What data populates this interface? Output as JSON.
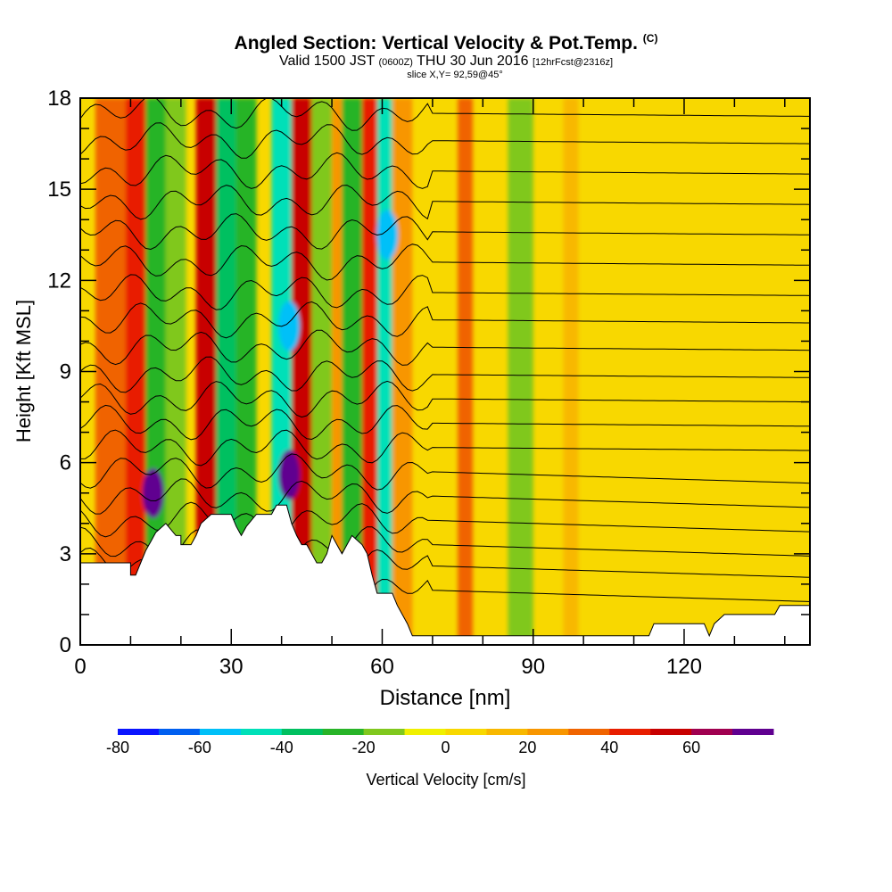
{
  "title": {
    "main": "Angled Section: Vertical Velocity & Pot.Temp.",
    "mark": "(C)",
    "valid_pre": "Valid 1500 JST",
    "valid_z": "(0600Z)",
    "valid_date": "THU 30 Jun 2016",
    "forecast": "[12hrFcst@2316z]",
    "slice": "slice X,Y= 92,59@45°"
  },
  "chart_data": {
    "type": "heatmap",
    "title": "Angled Section: Vertical Velocity & Pot.Temp.",
    "xlabel": "Distance [nm]",
    "ylabel": "Height [Kft MSL]",
    "xlim": [
      0,
      145
    ],
    "ylim": [
      0,
      18
    ],
    "x_ticks": [
      0,
      30,
      60,
      90,
      120
    ],
    "y_ticks": [
      0,
      3,
      6,
      9,
      12,
      15,
      18
    ],
    "colorbar": {
      "label": "Vertical Velocity [cm/s]",
      "ticks": [
        -80,
        -60,
        -40,
        -20,
        0,
        20,
        40,
        60
      ],
      "bins": [
        {
          "lo": -80,
          "hi": -70,
          "color": "#0a14ff"
        },
        {
          "lo": -70,
          "hi": -60,
          "color": "#005ff0"
        },
        {
          "lo": -60,
          "hi": -50,
          "color": "#00c0f8"
        },
        {
          "lo": -50,
          "hi": -40,
          "color": "#00e0b8"
        },
        {
          "lo": -40,
          "hi": -30,
          "color": "#00c060"
        },
        {
          "lo": -30,
          "hi": -20,
          "color": "#28b428"
        },
        {
          "lo": -20,
          "hi": -10,
          "color": "#80c81e"
        },
        {
          "lo": -10,
          "hi": 0,
          "color": "#f0f000"
        },
        {
          "lo": 0,
          "hi": 10,
          "color": "#f8d800"
        },
        {
          "lo": 10,
          "hi": 20,
          "color": "#f8b800"
        },
        {
          "lo": 20,
          "hi": 30,
          "color": "#f89600"
        },
        {
          "lo": 30,
          "hi": 40,
          "color": "#f06400"
        },
        {
          "lo": 40,
          "hi": 50,
          "color": "#e81e00"
        },
        {
          "lo": 50,
          "hi": 60,
          "color": "#c80000"
        },
        {
          "lo": 60,
          "hi": 70,
          "color": "#a00050"
        },
        {
          "lo": 70,
          "hi": 80,
          "color": "#600090"
        }
      ]
    },
    "vertical_velocity_features": [
      {
        "x0": 3,
        "x1": 9,
        "value": 35
      },
      {
        "x0": 9,
        "x1": 13,
        "value": 45
      },
      {
        "x0": 13,
        "x1": 17,
        "value": -30
      },
      {
        "x0": 17,
        "x1": 21,
        "value": -20
      },
      {
        "x0": 23,
        "x1": 27,
        "value": 55
      },
      {
        "x0": 27,
        "x1": 31,
        "value": -40
      },
      {
        "x0": 31,
        "x1": 35,
        "value": -25
      },
      {
        "x0": 38,
        "x1": 42,
        "value": -45
      },
      {
        "x0": 42,
        "x1": 46,
        "value": 50
      },
      {
        "x0": 46,
        "x1": 50,
        "value": -15
      },
      {
        "x0": 50,
        "x1": 52,
        "value": 25
      },
      {
        "x0": 52,
        "x1": 56,
        "value": -30
      },
      {
        "x0": 56,
        "x1": 59,
        "value": 45
      },
      {
        "x0": 59,
        "x1": 62,
        "value": -45
      },
      {
        "x0": 62,
        "x1": 66,
        "value": 20
      },
      {
        "x0": 75,
        "x1": 78,
        "value": 35
      },
      {
        "x0": 85,
        "x1": 90,
        "value": -15
      },
      {
        "x0": 96,
        "x1": 99,
        "value": 15
      }
    ],
    "strong_cores": [
      {
        "x": 14.5,
        "y": 5.0,
        "value": 75
      },
      {
        "x": 41.5,
        "y": 5.6,
        "value": 75
      },
      {
        "x": 61,
        "y": 13.5,
        "value": -55
      },
      {
        "x": 41.5,
        "y": 10.5,
        "value": -55
      }
    ],
    "pot_temp_contour_heights": [
      1.8,
      2.6,
      3.3,
      4.1,
      4.9,
      5.7,
      6.5,
      7.3,
      8.1,
      8.9,
      9.8,
      10.7,
      11.6,
      12.6,
      13.6,
      14.6,
      15.6,
      16.6,
      17.5
    ],
    "terrain": [
      [
        0,
        2.7
      ],
      [
        10,
        2.7
      ],
      [
        10,
        2.3
      ],
      [
        11,
        2.3
      ],
      [
        12,
        2.7
      ],
      [
        13,
        3.1
      ],
      [
        14,
        3.4
      ],
      [
        15,
        3.7
      ],
      [
        17,
        4.0
      ],
      [
        19,
        3.6
      ],
      [
        20,
        3.6
      ],
      [
        20,
        3.3
      ],
      [
        22,
        3.3
      ],
      [
        23,
        3.6
      ],
      [
        24,
        4.0
      ],
      [
        26,
        4.3
      ],
      [
        30,
        4.3
      ],
      [
        31,
        3.9
      ],
      [
        32,
        3.6
      ],
      [
        33,
        3.9
      ],
      [
        35,
        4.3
      ],
      [
        38,
        4.3
      ],
      [
        39,
        4.6
      ],
      [
        41,
        4.6
      ],
      [
        42,
        4.0
      ],
      [
        43,
        3.6
      ],
      [
        44,
        3.3
      ],
      [
        45,
        3.3
      ],
      [
        46,
        3.0
      ],
      [
        47,
        2.7
      ],
      [
        48,
        2.7
      ],
      [
        49,
        3.0
      ],
      [
        50,
        3.6
      ],
      [
        51,
        3.3
      ],
      [
        52,
        3.0
      ],
      [
        53,
        3.3
      ],
      [
        54,
        3.6
      ],
      [
        56,
        3.3
      ],
      [
        57,
        3.0
      ],
      [
        58,
        2.3
      ],
      [
        59,
        1.7
      ],
      [
        62,
        1.7
      ],
      [
        63,
        1.3
      ],
      [
        64,
        1.0
      ],
      [
        65,
        0.7
      ],
      [
        66,
        0.3
      ],
      [
        113,
        0.3
      ],
      [
        114,
        0.7
      ],
      [
        124,
        0.7
      ],
      [
        125,
        0.3
      ],
      [
        126,
        0.7
      ],
      [
        128,
        1.0
      ],
      [
        138,
        1.0
      ],
      [
        139,
        1.3
      ],
      [
        145,
        1.3
      ]
    ]
  }
}
